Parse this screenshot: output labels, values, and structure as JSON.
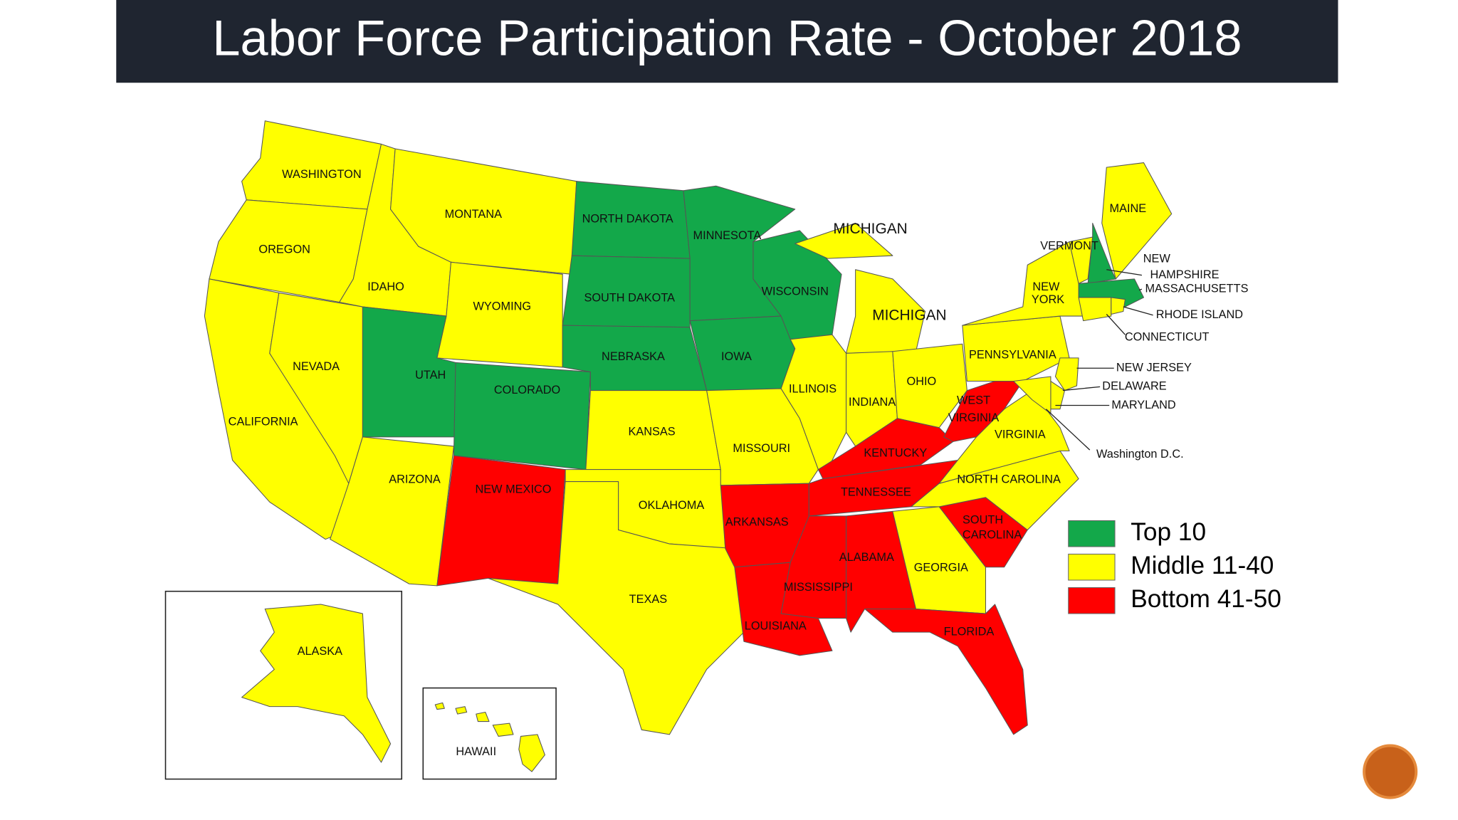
{
  "title": "Labor Force Participation Rate  - October 2018",
  "legend": [
    {
      "label": "Top 10",
      "color": "#13a84a"
    },
    {
      "label": "Middle 11-40",
      "color": "#ffff00"
    },
    {
      "label": "Bottom 41-50",
      "color": "#ff0000"
    }
  ],
  "states": [
    {
      "labels": [
        "WASHINGTON"
      ],
      "group": 1
    },
    {
      "labels": [
        "OREGON"
      ],
      "group": 1
    },
    {
      "labels": [
        "CALIFORNIA"
      ],
      "group": 1
    },
    {
      "labels": [
        "NEVADA"
      ],
      "group": 1
    },
    {
      "labels": [
        "IDAHO"
      ],
      "group": 1
    },
    {
      "labels": [
        "MONTANA"
      ],
      "group": 1
    },
    {
      "labels": [
        "WYOMING"
      ],
      "group": 1
    },
    {
      "labels": [
        "UTAH"
      ],
      "group": 0
    },
    {
      "labels": [
        "COLORADO"
      ],
      "group": 0
    },
    {
      "labels": [
        "ARIZONA"
      ],
      "group": 1
    },
    {
      "labels": [
        "NEW MEXICO"
      ],
      "group": 2
    },
    {
      "labels": [
        "NORTH DAKOTA"
      ],
      "group": 0
    },
    {
      "labels": [
        "SOUTH DAKOTA"
      ],
      "group": 0
    },
    {
      "labels": [
        "NEBRASKA"
      ],
      "group": 0
    },
    {
      "labels": [
        "KANSAS"
      ],
      "group": 1
    },
    {
      "labels": [
        "OKLAHOMA"
      ],
      "group": 1
    },
    {
      "labels": [
        "TEXAS"
      ],
      "group": 1
    },
    {
      "labels": [
        "MINNESOTA"
      ],
      "group": 0
    },
    {
      "labels": [
        "IOWA"
      ],
      "group": 0
    },
    {
      "labels": [
        "MISSOURI"
      ],
      "group": 1
    },
    {
      "labels": [
        "ARKANSAS"
      ],
      "group": 2
    },
    {
      "labels": [
        "LOUISIANA"
      ],
      "group": 2
    },
    {
      "labels": [
        "WISCONSIN"
      ],
      "group": 0
    },
    {
      "labels": [
        "ILLINOIS"
      ],
      "group": 1
    },
    {
      "labels": [
        "MICHIGAN",
        "MICHIGAN"
      ],
      "group": 1
    },
    {
      "labels": [
        "INDIANA"
      ],
      "group": 1
    },
    {
      "labels": [
        "OHIO"
      ],
      "group": 1
    },
    {
      "labels": [
        "KENTUCKY"
      ],
      "group": 2
    },
    {
      "labels": [
        "TENNESSEE"
      ],
      "group": 2
    },
    {
      "labels": [
        "MISSISSIPPI"
      ],
      "group": 2
    },
    {
      "labels": [
        "ALABAMA"
      ],
      "group": 2
    },
    {
      "labels": [
        "GEORGIA"
      ],
      "group": 1
    },
    {
      "labels": [
        "FLORIDA"
      ],
      "group": 2
    },
    {
      "labels": [
        "SOUTH",
        "CAROLINA"
      ],
      "group": 2
    },
    {
      "labels": [
        "NORTH CAROLINA"
      ],
      "group": 1
    },
    {
      "labels": [
        "VIRGINIA"
      ],
      "group": 1
    },
    {
      "labels": [
        "WEST",
        "VIRGINIA"
      ],
      "group": 2
    },
    {
      "labels": [
        "PENNSYLVANIA"
      ],
      "group": 1
    },
    {
      "labels": [
        "NEW",
        "YORK"
      ],
      "group": 1
    },
    {
      "labels": [
        "VERMONT"
      ],
      "group": 1
    },
    {
      "labels": [
        "NEW",
        "HAMPSHIRE"
      ],
      "group": 0
    },
    {
      "labels": [
        "MAINE"
      ],
      "group": 1
    },
    {
      "labels": [
        "MASSACHUSETTS"
      ],
      "group": 0
    },
    {
      "labels": [
        "CONNECTICUT"
      ],
      "group": 1
    },
    {
      "labels": [
        "RHODE ISLAND"
      ],
      "group": 1
    },
    {
      "labels": [
        "NEW JERSEY"
      ],
      "group": 1
    },
    {
      "labels": [
        "DELAWARE"
      ],
      "group": 1
    },
    {
      "labels": [
        "MARYLAND"
      ],
      "group": 1
    },
    {
      "labels": [
        "ALASKA"
      ],
      "group": 1
    },
    {
      "labels": [
        "HAWAII"
      ],
      "group": 1
    }
  ],
  "other_labels": [
    "Washington D.C."
  ]
}
